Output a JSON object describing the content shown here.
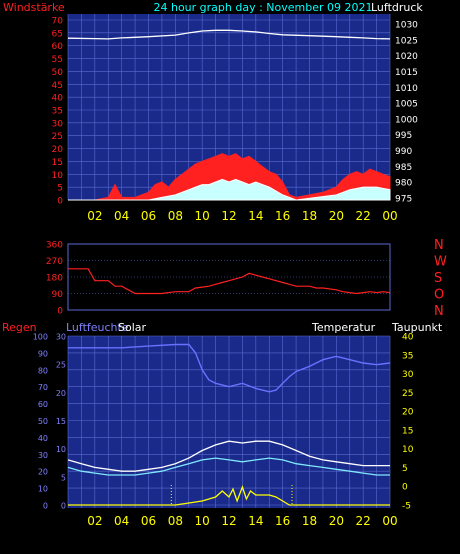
{
  "header": {
    "windstaerke": "Windstärke",
    "title": "24 hour graph day : November 09 2021",
    "luftdruck": "Luftdruck"
  },
  "colors": {
    "background": "#000000",
    "plot": "#1a2a8a",
    "grid": "#5a6ad0",
    "axis_text": "#ffff00",
    "wind": "#ff2020",
    "gust": "#ffffff",
    "pressure": "#ffffff",
    "direction": "#ff2020",
    "humidity": "#6a70ff",
    "temperature": "#ffffff",
    "dewpoint": "#80e8ff",
    "solar": "#ffff00",
    "red_label": "#ff2020",
    "cyan_label": "#00ffff",
    "blue_label": "#8080ff"
  },
  "xaxis": {
    "hours": [
      "02",
      "04",
      "06",
      "08",
      "10",
      "12",
      "14",
      "16",
      "18",
      "20",
      "22",
      "00"
    ]
  },
  "chart_data": [
    {
      "type": "area",
      "name": "wind",
      "left_ticks": [
        "70",
        "65",
        "60",
        "55",
        "50",
        "45",
        "40",
        "35",
        "30",
        "25",
        "20",
        "15",
        "10",
        "5",
        "0"
      ],
      "right_ticks": [
        "1030",
        "1025",
        "1020",
        "1015",
        "1010",
        "1005",
        "1000",
        "995",
        "990",
        "985",
        "980",
        "975"
      ],
      "ylim_left": [
        0,
        70
      ],
      "ylim_right": [
        975,
        1030
      ],
      "pressure": {
        "x": [
          0,
          2,
          3,
          4,
          6,
          8,
          9,
          10,
          11,
          12,
          13,
          14,
          15,
          16,
          18,
          20,
          21,
          22,
          23,
          24
        ],
        "y": [
          1025.5,
          1025.4,
          1025.3,
          1025.6,
          1026,
          1026.5,
          1027.2,
          1027.8,
          1028,
          1028,
          1027.8,
          1027.5,
          1027,
          1026.6,
          1026.3,
          1026,
          1025.8,
          1025.6,
          1025.4,
          1025.3
        ]
      },
      "wind": {
        "x": [
          0,
          1,
          2,
          3,
          3.5,
          4,
          5,
          6,
          6.5,
          7,
          7.5,
          8,
          8.5,
          9,
          9.5,
          10,
          10.5,
          11,
          11.5,
          12,
          12.5,
          13,
          13.5,
          14,
          14.5,
          15,
          15.5,
          16,
          16.5,
          17,
          18,
          19,
          20,
          20.5,
          21,
          21.5,
          22,
          22.5,
          23,
          23.5,
          24
        ],
        "y": [
          0,
          0,
          0,
          1,
          6,
          1,
          1,
          3,
          6,
          7,
          5,
          8,
          10,
          12,
          14,
          15,
          16,
          17,
          18,
          17,
          18,
          16,
          17,
          15,
          13,
          11,
          10,
          7,
          2,
          1,
          2,
          3,
          5,
          8,
          10,
          11,
          10,
          12,
          11,
          10,
          9
        ]
      },
      "gust": {
        "x": [
          0,
          3,
          6,
          7,
          8,
          9,
          9.5,
          10,
          10.5,
          11,
          11.5,
          12,
          12.5,
          13,
          13.5,
          14,
          14.5,
          15,
          16,
          17,
          20,
          21,
          22,
          23,
          24
        ],
        "y": [
          0,
          0,
          0,
          1,
          2,
          4,
          5,
          6,
          6,
          7,
          8,
          7,
          8,
          7,
          6,
          7,
          6,
          5,
          2,
          0,
          2,
          4,
          5,
          5,
          4
        ]
      }
    },
    {
      "type": "line",
      "name": "direction",
      "left_ticks": [
        "360",
        "270",
        "180",
        "90",
        "0"
      ],
      "right_labels": [
        "N",
        "W",
        "S",
        "O",
        "N"
      ],
      "ylim": [
        0,
        360
      ],
      "x": [
        0,
        1,
        1.5,
        2,
        3,
        3.5,
        4,
        5,
        6,
        7,
        8,
        8.5,
        9,
        9.5,
        10,
        10.5,
        11,
        11.5,
        12,
        12.5,
        13,
        13.5,
        14,
        14.5,
        15,
        15.5,
        16,
        16.5,
        17,
        18,
        18.5,
        19,
        20,
        20.5,
        21,
        21.5,
        22,
        22.5,
        23,
        23.5,
        24
      ],
      "y": [
        225,
        225,
        225,
        160,
        160,
        130,
        130,
        90,
        90,
        90,
        100,
        100,
        100,
        120,
        125,
        130,
        140,
        150,
        160,
        170,
        180,
        200,
        190,
        180,
        170,
        160,
        150,
        140,
        130,
        130,
        120,
        120,
        110,
        100,
        95,
        90,
        95,
        100,
        95,
        100,
        95
      ]
    },
    {
      "type": "line",
      "name": "humidity-temp-solar",
      "labels": {
        "regen": "Regen",
        "luftfeuchte": "Luftfeuchte",
        "solar": "Solar",
        "temperatur": "Temperatur",
        "taupunkt": "Taupunkt"
      },
      "left_ticks": [
        "100",
        "90",
        "80",
        "70",
        "60",
        "50",
        "40",
        "30",
        "20",
        "10",
        "0"
      ],
      "inner_ticks": [
        "30",
        "25",
        "20",
        "15",
        "10",
        "5",
        "0"
      ],
      "right_ticks": [
        "40",
        "35",
        "30",
        "25",
        "20",
        "15",
        "10",
        "5",
        "0",
        "-5"
      ],
      "ylim_left": [
        0,
        100
      ],
      "ylim_temp": [
        -5,
        40
      ],
      "humidity": {
        "x": [
          0,
          2,
          4,
          6,
          8,
          9,
          9.5,
          10,
          10.5,
          11,
          12,
          13,
          14,
          15,
          15.5,
          16,
          16.5,
          17,
          18,
          19,
          20,
          21,
          22,
          23,
          24
        ],
        "y": [
          93,
          93,
          93,
          94,
          95,
          95,
          90,
          80,
          74,
          72,
          70,
          72,
          69,
          67,
          68,
          72,
          76,
          79,
          82,
          86,
          88,
          86,
          84,
          83,
          84
        ]
      },
      "temperature": {
        "x": [
          0,
          1,
          2,
          3,
          4,
          5,
          6,
          7,
          8,
          9,
          10,
          11,
          12,
          13,
          14,
          15,
          16,
          17,
          18,
          19,
          20,
          21,
          22,
          23,
          24
        ],
        "y": [
          7,
          6,
          5,
          4.5,
          4,
          4,
          4.5,
          5,
          6,
          7.5,
          9.5,
          11,
          12,
          11.5,
          12,
          12,
          11,
          9.5,
          8,
          7,
          6.5,
          6,
          5.5,
          5.5,
          5.5
        ]
      },
      "dewpoint": {
        "x": [
          0,
          1,
          2,
          3,
          4,
          5,
          6,
          7,
          8,
          9,
          10,
          11,
          12,
          13,
          14,
          15,
          16,
          17,
          18,
          19,
          20,
          21,
          22,
          23,
          24
        ],
        "y": [
          5,
          4,
          3.5,
          3,
          3,
          3,
          3.5,
          4,
          5,
          6,
          7,
          7.5,
          7,
          6.5,
          7,
          7.5,
          7,
          6,
          5.5,
          5,
          4.5,
          4,
          3.5,
          3,
          3
        ]
      },
      "solar": {
        "x": [
          0,
          7.5,
          8,
          9,
          10,
          10.5,
          11,
          11.5,
          12,
          12.3,
          12.6,
          13,
          13.3,
          13.6,
          14,
          15,
          15.5,
          16,
          16.5,
          24
        ],
        "y": [
          0,
          0,
          0,
          1,
          2,
          3,
          4,
          7,
          4,
          8,
          2,
          9,
          3,
          7,
          5,
          5,
          4,
          2,
          0,
          0
        ]
      },
      "solar_markers_x": [
        7.7,
        16.7
      ]
    }
  ]
}
